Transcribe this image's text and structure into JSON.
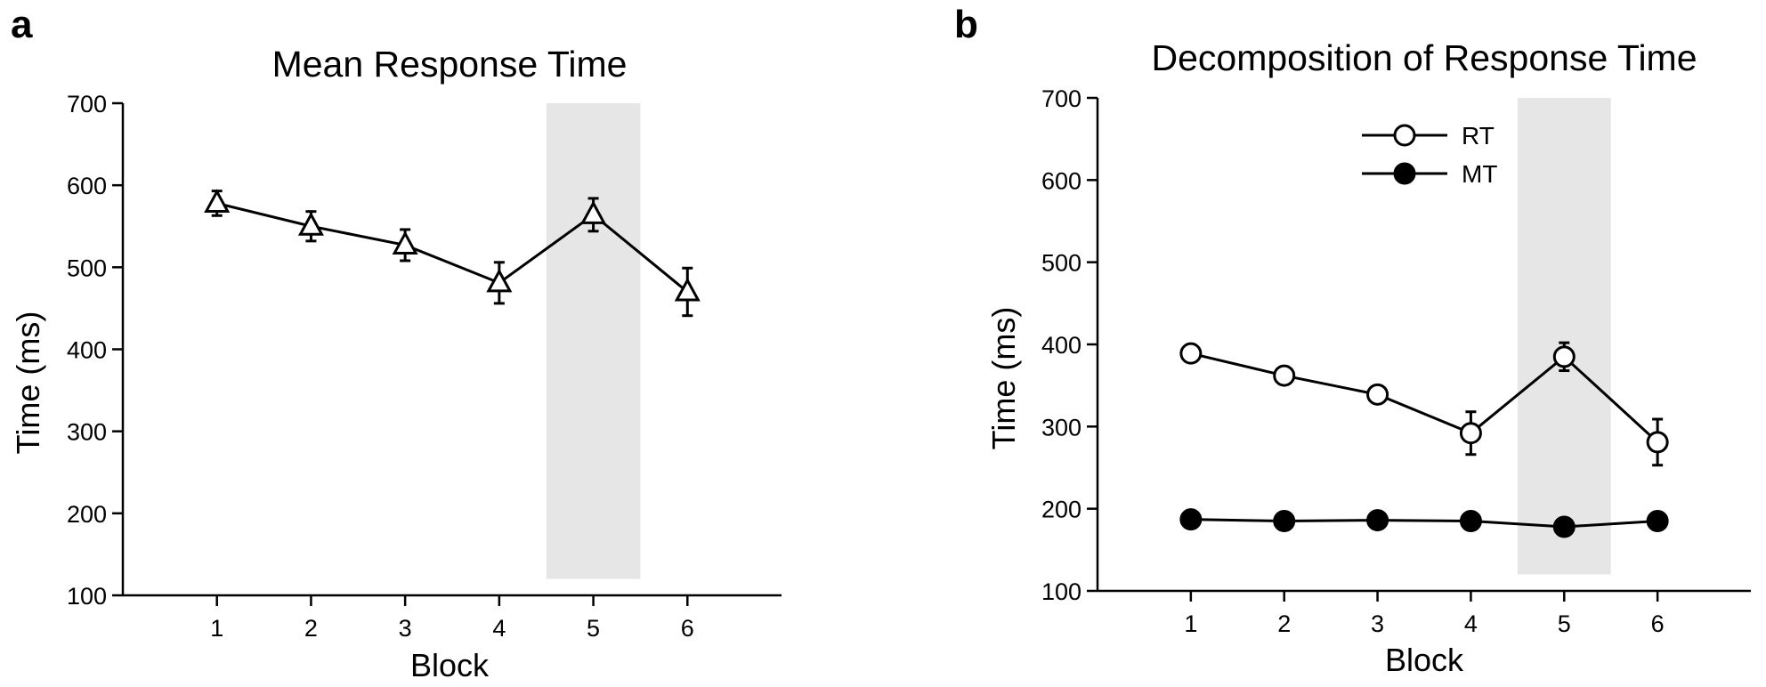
{
  "chart_data": [
    {
      "panel": "a",
      "type": "line",
      "title": "Mean Response Time",
      "xlabel": "Block",
      "ylabel": "Time (ms)",
      "ylim": [
        100,
        700
      ],
      "xlim": [
        0,
        7
      ],
      "yticks": [
        "700",
        "600",
        "500",
        "400",
        "300",
        "200",
        "100"
      ],
      "categories": [
        "1",
        "2",
        "3",
        "4",
        "5",
        "6"
      ],
      "shaded_block": 5,
      "shade_range": [
        120,
        700
      ],
      "series": [
        {
          "name": "Response Time",
          "marker": "open-triangle",
          "x": [
            1,
            2,
            3,
            4,
            5,
            6
          ],
          "values": [
            578,
            550,
            527,
            481,
            564,
            470
          ],
          "errors": [
            15,
            18,
            19,
            25,
            20,
            29
          ]
        }
      ]
    },
    {
      "panel": "b",
      "type": "line",
      "title": "Decomposition of Response Time",
      "xlabel": "Block",
      "ylabel": "Time (ms)",
      "ylim": [
        100,
        700
      ],
      "xlim": [
        0,
        7
      ],
      "yticks": [
        "700",
        "600",
        "500",
        "400",
        "300",
        "200",
        "100"
      ],
      "categories": [
        "1",
        "2",
        "3",
        "4",
        "5",
        "6"
      ],
      "shaded_block": 5,
      "shade_range": [
        120,
        700
      ],
      "legend_position": "top-center",
      "series": [
        {
          "name": "RT",
          "marker": "open-circle",
          "x": [
            1,
            2,
            3,
            4,
            5,
            6
          ],
          "values": [
            389,
            362,
            339,
            292,
            385,
            281
          ],
          "errors": [
            6,
            6,
            7,
            26,
            17,
            28
          ]
        },
        {
          "name": "MT",
          "marker": "filled-circle",
          "x": [
            1,
            2,
            3,
            4,
            5,
            6
          ],
          "values": [
            187,
            185,
            186,
            185,
            178,
            185
          ],
          "errors": [
            4,
            4,
            4,
            4,
            6,
            5
          ]
        }
      ]
    }
  ]
}
